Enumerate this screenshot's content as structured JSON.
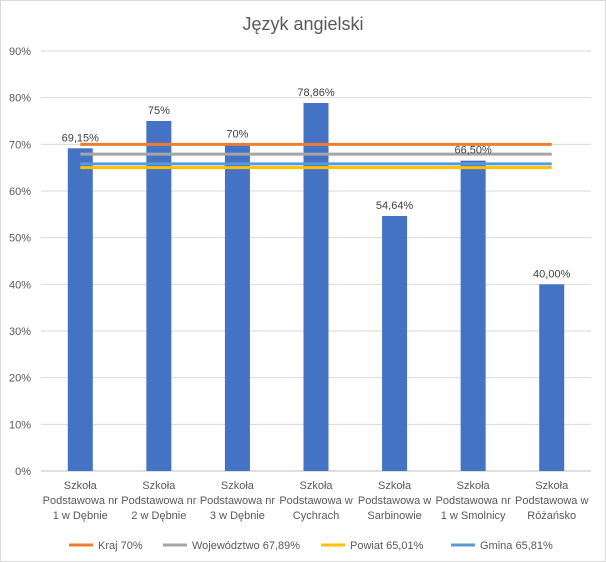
{
  "chart_data": {
    "type": "bar",
    "title": "Język angielski",
    "categories": [
      [
        "Szkoła",
        "Podstawowa nr",
        "1 w Dębnie"
      ],
      [
        "Szkoła",
        "Podstawowa nr",
        "2 w Dębnie"
      ],
      [
        "Szkoła",
        "Podstawowa nr",
        "3 w Dębnie"
      ],
      [
        "Szkoła",
        "Podstawowa w",
        "Cychrach"
      ],
      [
        "Szkoła",
        "Podstawowa w",
        "Sarbinowie"
      ],
      [
        "Szkoła",
        "Podstawowa nr",
        "1 w Smolnicy"
      ],
      [
        "Szkoła",
        "Podstawowa w",
        "Różańsko"
      ]
    ],
    "values": [
      69.15,
      75,
      70,
      78.86,
      54.64,
      66.5,
      40
    ],
    "data_labels": [
      "69,15%",
      "75%",
      "70%",
      "78,86%",
      "54,64%",
      "66,50%",
      "40,00%"
    ],
    "bar_color": "#4472c4",
    "ylim": [
      0,
      90
    ],
    "yticks": [
      "0%",
      "10%",
      "20%",
      "30%",
      "40%",
      "50%",
      "60%",
      "70%",
      "80%",
      "90%"
    ],
    "grid": true,
    "reference_lines": [
      {
        "name": "Kraj  70%",
        "value": 70,
        "color": "#ed7d31"
      },
      {
        "name": "Województwo 67,89%",
        "value": 67.89,
        "color": "#a5a5a5"
      },
      {
        "name": "Powiat 65,01%",
        "value": 65.01,
        "color": "#ffc000"
      },
      {
        "name": "Gmina 65,81%",
        "value": 65.81,
        "color": "#5b9bd5"
      }
    ],
    "legend_position": "bottom"
  }
}
